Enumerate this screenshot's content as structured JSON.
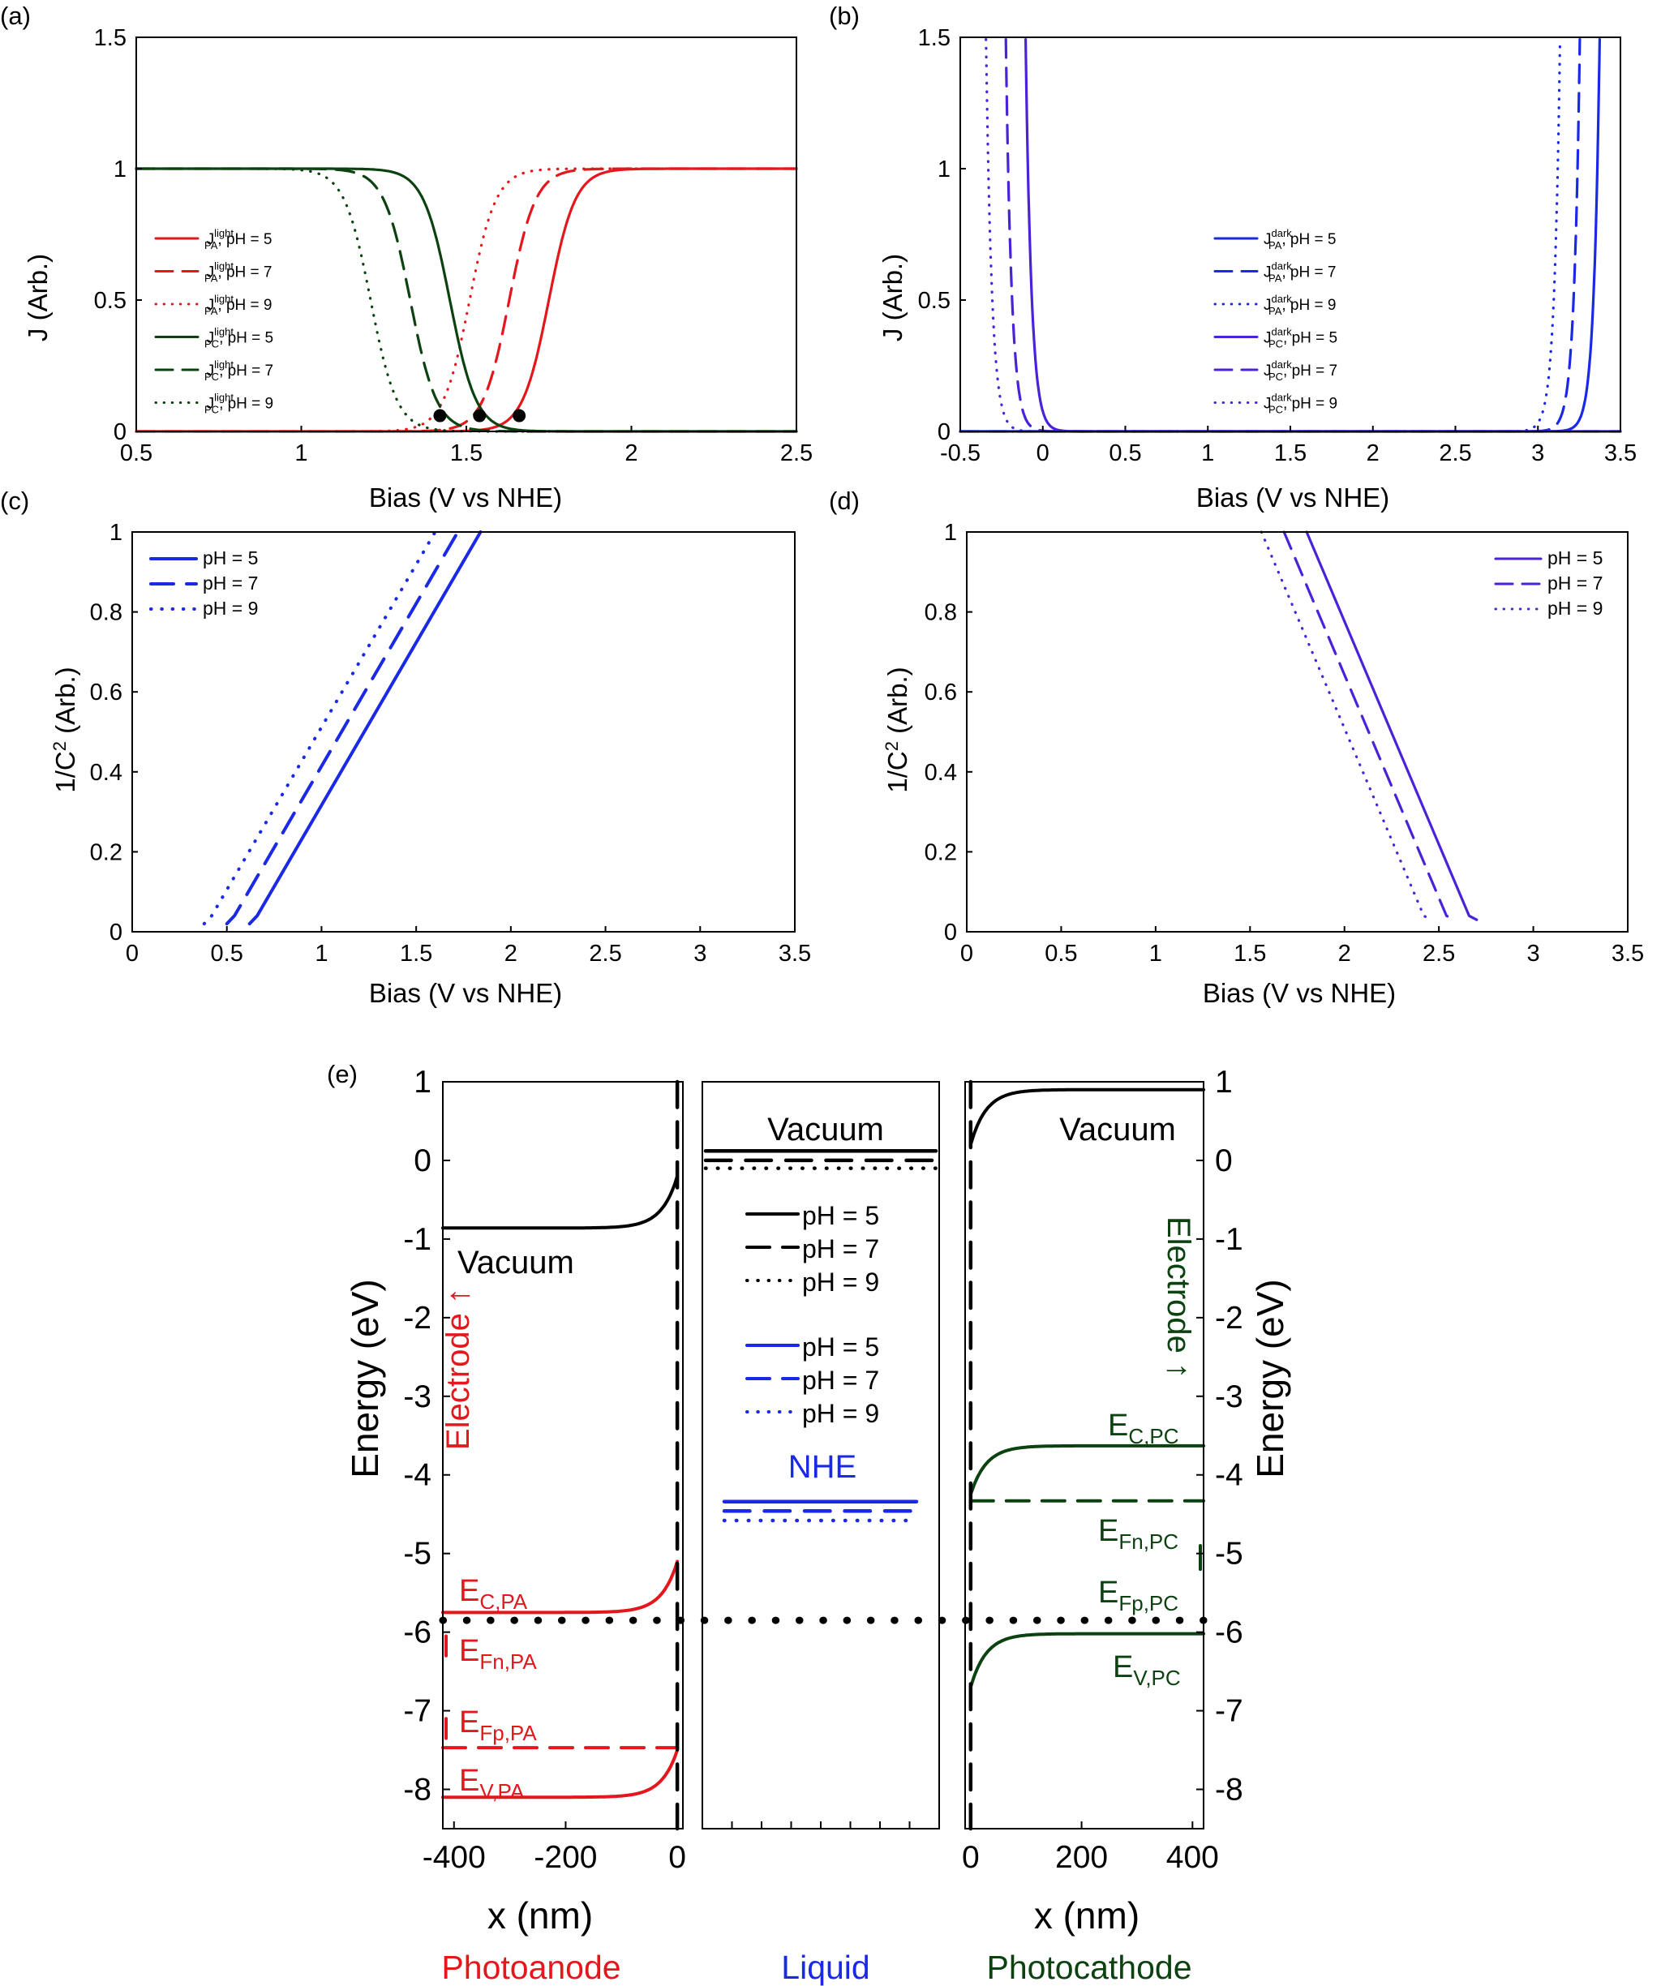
{
  "colors": {
    "red": "#e4171c",
    "green": "#0b4210",
    "blue": "#1a29e6",
    "violet": "#4a22d8",
    "black": "#000000"
  },
  "chart_data": [
    {
      "panel": "(a)",
      "type": "line",
      "xlabel": "Bias (V vs NHE)",
      "ylabel": "J (Arb.)",
      "xlim": [
        0.5,
        2.5
      ],
      "ylim": [
        0,
        1.5
      ],
      "xticks": [
        "0.5",
        "1",
        "1.5",
        "2",
        "2.5"
      ],
      "yticks": [
        "0",
        "0.5",
        "1",
        "1.5"
      ],
      "series": [
        {
          "name": "J_PA^light, pH = 5",
          "base": "J",
          "sup": "light",
          "sub": "PA",
          "tail": ", pH = 5",
          "color": "red",
          "dash": "solid",
          "kind": "anodic",
          "onset": 1.75,
          "width": 0.04
        },
        {
          "name": "J_PA^light, pH = 7",
          "base": "J",
          "sup": "light",
          "sub": "PA",
          "tail": ", pH = 7",
          "color": "red",
          "dash": "dashed",
          "kind": "anodic",
          "onset": 1.63,
          "width": 0.04
        },
        {
          "name": "J_PA^light, pH = 9",
          "base": "J",
          "sup": "light",
          "sub": "PA",
          "tail": ", pH = 9",
          "color": "red",
          "dash": "dotted",
          "kind": "anodic",
          "onset": 1.51,
          "width": 0.04
        },
        {
          "name": "J_PC^light, pH = 5",
          "base": "J",
          "sup": "light",
          "sub": "PC",
          "tail": ", pH = 5",
          "color": "green",
          "dash": "solid",
          "kind": "cathodic",
          "onset": 1.45,
          "width": 0.04
        },
        {
          "name": "J_PC^light, pH = 7",
          "base": "J",
          "sup": "light",
          "sub": "PC",
          "tail": ", pH = 7",
          "color": "green",
          "dash": "dashed",
          "kind": "cathodic",
          "onset": 1.33,
          "width": 0.04
        },
        {
          "name": "J_PC^light, pH = 9",
          "base": "J",
          "sup": "light",
          "sub": "PC",
          "tail": ", pH = 9",
          "color": "green",
          "dash": "dotted",
          "kind": "cathodic",
          "onset": 1.21,
          "width": 0.04
        }
      ],
      "markers": [
        {
          "x": 1.42,
          "y": 0.06
        },
        {
          "x": 1.54,
          "y": 0.06
        },
        {
          "x": 1.66,
          "y": 0.06
        }
      ]
    },
    {
      "panel": "(b)",
      "type": "line",
      "xlabel": "Bias (V vs NHE)",
      "ylabel": "J (Arb.)",
      "xlim": [
        -0.5,
        3.5
      ],
      "ylim": [
        0,
        1.5
      ],
      "xticks": [
        "-0.5",
        "0",
        "0.5",
        "1",
        "1.5",
        "2",
        "2.5",
        "3",
        "3.5"
      ],
      "yticks": [
        "0",
        "0.5",
        "1",
        "1.5"
      ],
      "series": [
        {
          "name": "J_PA^dark, pH = 5",
          "base": "J",
          "sup": "dark",
          "sub": "PA",
          "tail": ", pH = 5",
          "color": "blue",
          "dash": "solid",
          "kind": "rise",
          "onset": 3.36,
          "width": 0.035
        },
        {
          "name": "J_PA^dark, pH = 7",
          "base": "J",
          "sup": "dark",
          "sub": "PA",
          "tail": ", pH = 7",
          "color": "blue",
          "dash": "dashed",
          "kind": "rise",
          "onset": 3.24,
          "width": 0.035
        },
        {
          "name": "J_PA^dark, pH = 9",
          "base": "J",
          "sup": "dark",
          "sub": "PA",
          "tail": ", pH = 9",
          "color": "blue",
          "dash": "dotted",
          "kind": "rise",
          "onset": 3.12,
          "width": 0.035
        },
        {
          "name": "J_PC^dark, pH = 5",
          "base": "J",
          "sup": "dark",
          "sub": "PC",
          "tail": ", pH = 5",
          "color": "violet",
          "dash": "solid",
          "kind": "fall",
          "onset": -0.09,
          "width": 0.035
        },
        {
          "name": "J_PC^dark, pH = 7",
          "base": "J",
          "sup": "dark",
          "sub": "PC",
          "tail": ", pH = 7",
          "color": "violet",
          "dash": "dashed",
          "kind": "fall",
          "onset": -0.21,
          "width": 0.035
        },
        {
          "name": "J_PC^dark, pH = 9",
          "base": "J",
          "sup": "dark",
          "sub": "PC",
          "tail": ", pH = 9",
          "color": "violet",
          "dash": "dotted",
          "kind": "fall",
          "onset": -0.33,
          "width": 0.035
        }
      ]
    },
    {
      "panel": "(c)",
      "type": "line",
      "xlabel": "Bias (V vs NHE)",
      "ylabel": "1/C² (Arb.)",
      "ylabel_parts": {
        "pre": "1/C",
        "sup": "2",
        "post": " (Arb.)"
      },
      "xlim": [
        0,
        3.5
      ],
      "ylim": [
        0,
        1
      ],
      "xticks": [
        "0",
        "0.5",
        "1",
        "1.5",
        "2",
        "2.5",
        "3",
        "3.5"
      ],
      "yticks": [
        "0",
        "0.2",
        "0.4",
        "0.6",
        "0.8",
        "1"
      ],
      "series": [
        {
          "name": "pH = 5",
          "color": "blue",
          "dash": "solid",
          "points": [
            [
              0.62,
              0.02
            ],
            [
              0.66,
              0.04
            ],
            [
              1.84,
              1.0
            ]
          ]
        },
        {
          "name": "pH = 7",
          "color": "blue",
          "dash": "dashed",
          "points": [
            [
              0.5,
              0.02
            ],
            [
              0.54,
              0.04
            ],
            [
              1.72,
              1.0
            ]
          ]
        },
        {
          "name": "pH = 9",
          "color": "blue",
          "dash": "dotted",
          "points": [
            [
              0.38,
              0.02
            ],
            [
              0.42,
              0.04
            ],
            [
              1.6,
              1.0
            ]
          ]
        }
      ]
    },
    {
      "panel": "(d)",
      "type": "line",
      "xlabel": "Bias (V vs NHE)",
      "ylabel": "1/C² (Arb.)",
      "ylabel_parts": {
        "pre": "1/C",
        "sup": "2",
        "post": " (Arb.)"
      },
      "xlim": [
        0,
        3.5
      ],
      "ylim": [
        0,
        1
      ],
      "xticks": [
        "0",
        "0.5",
        "1",
        "1.5",
        "2",
        "2.5",
        "3",
        "3.5"
      ],
      "yticks": [
        "0",
        "0.2",
        "0.4",
        "0.6",
        "0.8",
        "1"
      ],
      "series": [
        {
          "name": "pH = 5",
          "color": "violet",
          "dash": "solid",
          "points": [
            [
              1.8,
              1.0
            ],
            [
              2.66,
              0.04
            ],
            [
              2.7,
              0.03
            ]
          ]
        },
        {
          "name": "pH = 7",
          "color": "violet",
          "dash": "dashed",
          "points": [
            [
              1.68,
              1.0
            ],
            [
              2.54,
              0.04
            ],
            [
              2.58,
              0.03
            ]
          ]
        },
        {
          "name": "pH = 9",
          "color": "violet",
          "dash": "dotted",
          "points": [
            [
              1.56,
              1.0
            ],
            [
              2.42,
              0.04
            ],
            [
              2.46,
              0.03
            ]
          ]
        }
      ]
    },
    {
      "panel": "(e)",
      "type": "line",
      "ylabel": "Energy (eV)",
      "ylim": [
        -8.5,
        1
      ],
      "yticks": [
        "1",
        "0",
        "-1",
        "-2",
        "-3",
        "-4",
        "-5",
        "-6",
        "-7",
        "-8"
      ],
      "left": {
        "title": "Photoanode",
        "xlabel": "x (nm)",
        "xlim": [
          -420,
          10
        ],
        "xticks": [
          "-400",
          "-200",
          "0"
        ],
        "vacuum_label": "Vacuum",
        "side_label": "Electrode ↑",
        "levels": [
          {
            "name": "Vacuum",
            "flat": -0.86,
            "edge": -0.2,
            "color": "black"
          },
          {
            "name": "E_C,PA",
            "base": "E",
            "sub": "C,PA",
            "flat": -5.75,
            "edge": -5.1,
            "color": "red"
          },
          {
            "name": "E_Fp,PA",
            "base": "E",
            "sub": "Fp,PA",
            "flat": -7.47,
            "color": "red",
            "dash": "dashed"
          },
          {
            "name": "E_V,PA",
            "base": "E",
            "sub": "V,PA",
            "flat": -8.1,
            "edge": -7.5,
            "color": "red"
          }
        ],
        "fn_label": {
          "base": "E",
          "sub": "Fn,PA"
        }
      },
      "middle": {
        "title": "Liquid",
        "vacuum_label": "Vacuum",
        "nhe_label": "NHE",
        "vacuum_levels": [
          0.12,
          0.0,
          -0.1
        ],
        "nhe_levels": [
          -4.34,
          -4.46,
          -4.58
        ],
        "legend": [
          "pH = 5",
          "pH = 7",
          "pH = 9"
        ]
      },
      "right": {
        "title": "Photocathode",
        "xlabel": "x (nm)",
        "xlim": [
          -10,
          420
        ],
        "xticks": [
          "0",
          "200",
          "400"
        ],
        "vacuum_label": "Vacuum",
        "side_label": "Electrode ↑",
        "levels": [
          {
            "name": "Vacuum",
            "flat": 0.9,
            "edge": 0.2,
            "color": "black"
          },
          {
            "name": "E_C,PC",
            "base": "E",
            "sub": "C,PC",
            "flat": -3.63,
            "edge": -4.25,
            "color": "green"
          },
          {
            "name": "E_Fn,PC",
            "base": "E",
            "sub": "Fn,PC",
            "flat": -4.33,
            "color": "green",
            "dash": "dashed"
          },
          {
            "name": "E_V,PC",
            "base": "E",
            "sub": "V,PC",
            "flat": -6.02,
            "edge": -6.7,
            "color": "green"
          }
        ],
        "fp_label": {
          "base": "E",
          "sub": "Fp,PC"
        }
      },
      "fermi_level": -5.85
    }
  ]
}
